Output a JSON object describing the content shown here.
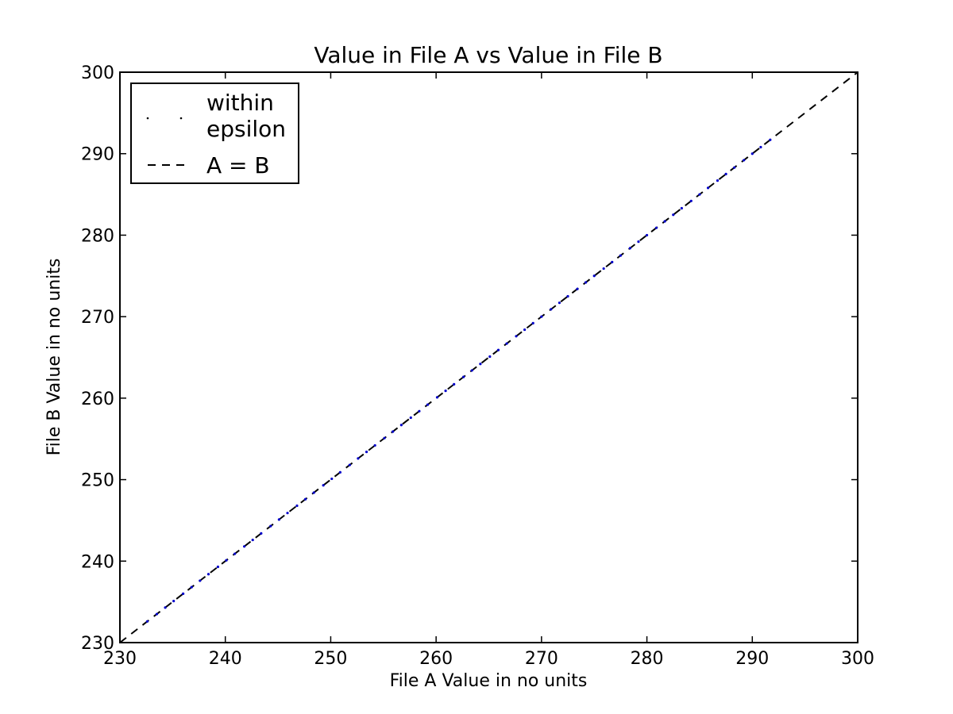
{
  "chart_data": {
    "type": "scatter",
    "title": "Value in File A vs Value in File B",
    "xlabel": "File A Value in no units",
    "ylabel": "File B Value in no units",
    "xlim": [
      230,
      300
    ],
    "ylim": [
      230,
      300
    ],
    "x_ticks": [
      "230",
      "240",
      "250",
      "260",
      "270",
      "280",
      "290",
      "300"
    ],
    "y_ticks": [
      "230",
      "240",
      "250",
      "260",
      "270",
      "280",
      "290",
      "300"
    ],
    "grid": false,
    "legend_position": "top-left",
    "legend": [
      "within\nepsilon",
      "A = B"
    ],
    "series": [
      {
        "name": "within\nepsilon",
        "style": "points",
        "color": "#0000cc",
        "x": [
          232.6,
          233.5,
          234.3,
          235.1,
          236.0,
          236.8,
          237.6,
          238.4,
          239.3,
          240.1,
          240.9,
          241.8,
          242.6,
          243.4,
          244.3,
          245.1,
          245.9,
          246.8,
          247.6,
          248.4,
          249.3,
          250.1,
          250.9,
          251.8,
          252.6,
          253.4,
          254.2,
          255.1,
          255.9,
          256.7,
          257.6,
          258.4,
          259.2,
          260.1,
          260.9,
          261.7,
          262.6,
          263.4,
          264.2,
          265.1,
          265.9,
          266.7,
          267.6,
          268.4,
          269.2,
          270.0,
          270.9,
          271.7,
          272.5,
          273.4,
          274.2,
          275.0,
          275.9,
          276.7,
          277.5,
          278.4,
          279.2,
          280.0,
          280.9,
          281.7,
          282.5,
          283.3,
          284.2,
          285.0,
          285.8,
          286.7,
          287.5,
          288.3,
          289.2,
          290.0,
          290.8,
          291.7
        ],
        "y": [
          232.6,
          233.5,
          234.3,
          235.1,
          236.0,
          236.8,
          237.6,
          238.4,
          239.3,
          240.1,
          240.9,
          241.8,
          242.6,
          243.4,
          244.3,
          245.1,
          245.9,
          246.8,
          247.6,
          248.4,
          249.3,
          250.1,
          250.9,
          251.8,
          252.6,
          253.4,
          254.2,
          255.1,
          255.9,
          256.7,
          257.6,
          258.4,
          259.2,
          260.1,
          260.9,
          261.7,
          262.6,
          263.4,
          264.2,
          265.1,
          265.9,
          266.7,
          267.6,
          268.4,
          269.2,
          270.0,
          270.9,
          271.7,
          272.5,
          273.4,
          274.2,
          275.0,
          275.9,
          276.7,
          277.5,
          278.4,
          279.2,
          280.0,
          280.9,
          281.7,
          282.5,
          283.3,
          284.2,
          285.0,
          285.8,
          286.7,
          287.5,
          288.3,
          289.2,
          290.0,
          290.8,
          291.7
        ]
      },
      {
        "name": "A = B",
        "style": "dashed-line",
        "color": "#000000",
        "x": [
          230,
          300
        ],
        "y": [
          230,
          300
        ]
      }
    ]
  }
}
